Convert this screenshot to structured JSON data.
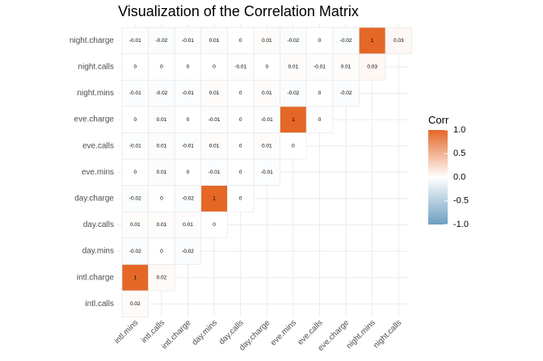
{
  "chart_data": {
    "type": "heatmap",
    "title": "Visualization of the Correlation Matrix",
    "x_categories": [
      "intl.mins",
      "intl.calls",
      "intl.charge",
      "day.mins",
      "day.calls",
      "day.charge",
      "eve.mins",
      "eve.calls",
      "eve.charge",
      "night.mins",
      "night.calls"
    ],
    "y_categories": [
      "intl.calls",
      "intl.charge",
      "day.mins",
      "day.calls",
      "day.charge",
      "eve.mins",
      "eve.calls",
      "eve.charge",
      "night.mins",
      "night.calls",
      "night.charge"
    ],
    "cells": [
      {
        "x": "intl.mins",
        "y": "intl.calls",
        "value": 0.02,
        "label": "0.02"
      },
      {
        "x": "intl.mins",
        "y": "intl.charge",
        "value": 1,
        "label": "1"
      },
      {
        "x": "intl.calls",
        "y": "intl.charge",
        "value": 0.02,
        "label": "0.02"
      },
      {
        "x": "intl.mins",
        "y": "day.mins",
        "value": -0.02,
        "label": "-0.02"
      },
      {
        "x": "intl.calls",
        "y": "day.mins",
        "value": 0,
        "label": "0"
      },
      {
        "x": "intl.charge",
        "y": "day.mins",
        "value": -0.02,
        "label": "-0.02"
      },
      {
        "x": "intl.mins",
        "y": "day.calls",
        "value": 0.01,
        "label": "0.01"
      },
      {
        "x": "intl.calls",
        "y": "day.calls",
        "value": 0.01,
        "label": "0.01"
      },
      {
        "x": "intl.charge",
        "y": "day.calls",
        "value": 0.01,
        "label": "0.01"
      },
      {
        "x": "day.mins",
        "y": "day.calls",
        "value": 0,
        "label": "0"
      },
      {
        "x": "intl.mins",
        "y": "day.charge",
        "value": -0.02,
        "label": "-0.02"
      },
      {
        "x": "intl.calls",
        "y": "day.charge",
        "value": 0,
        "label": "0"
      },
      {
        "x": "intl.charge",
        "y": "day.charge",
        "value": -0.02,
        "label": "-0.02"
      },
      {
        "x": "day.mins",
        "y": "day.charge",
        "value": 1,
        "label": "1"
      },
      {
        "x": "day.calls",
        "y": "day.charge",
        "value": 0,
        "label": "0"
      },
      {
        "x": "intl.mins",
        "y": "eve.mins",
        "value": 0,
        "label": "0"
      },
      {
        "x": "intl.calls",
        "y": "eve.mins",
        "value": 0.01,
        "label": "0.01"
      },
      {
        "x": "intl.charge",
        "y": "eve.mins",
        "value": 0,
        "label": "0"
      },
      {
        "x": "day.mins",
        "y": "eve.mins",
        "value": -0.01,
        "label": "-0.01"
      },
      {
        "x": "day.calls",
        "y": "eve.mins",
        "value": 0,
        "label": "0"
      },
      {
        "x": "day.charge",
        "y": "eve.mins",
        "value": -0.01,
        "label": "-0.01"
      },
      {
        "x": "intl.mins",
        "y": "eve.calls",
        "value": -0.01,
        "label": "-0.01"
      },
      {
        "x": "intl.calls",
        "y": "eve.calls",
        "value": 0.01,
        "label": "0.01"
      },
      {
        "x": "intl.charge",
        "y": "eve.calls",
        "value": -0.01,
        "label": "-0.01"
      },
      {
        "x": "day.mins",
        "y": "eve.calls",
        "value": 0.01,
        "label": "0.01"
      },
      {
        "x": "day.calls",
        "y": "eve.calls",
        "value": 0,
        "label": "0"
      },
      {
        "x": "day.charge",
        "y": "eve.calls",
        "value": 0.01,
        "label": "0.01"
      },
      {
        "x": "eve.mins",
        "y": "eve.calls",
        "value": 0,
        "label": "0"
      },
      {
        "x": "intl.mins",
        "y": "eve.charge",
        "value": 0,
        "label": "0"
      },
      {
        "x": "intl.calls",
        "y": "eve.charge",
        "value": 0.01,
        "label": "0.01"
      },
      {
        "x": "intl.charge",
        "y": "eve.charge",
        "value": 0,
        "label": "0"
      },
      {
        "x": "day.mins",
        "y": "eve.charge",
        "value": -0.01,
        "label": "-0.01"
      },
      {
        "x": "day.calls",
        "y": "eve.charge",
        "value": 0,
        "label": "0"
      },
      {
        "x": "day.charge",
        "y": "eve.charge",
        "value": -0.01,
        "label": "-0.01"
      },
      {
        "x": "eve.mins",
        "y": "eve.charge",
        "value": 1,
        "label": "1"
      },
      {
        "x": "eve.calls",
        "y": "eve.charge",
        "value": 0,
        "label": "0"
      },
      {
        "x": "intl.mins",
        "y": "night.mins",
        "value": -0.01,
        "label": "-0.01"
      },
      {
        "x": "intl.calls",
        "y": "night.mins",
        "value": -0.02,
        "label": "-0.02"
      },
      {
        "x": "intl.charge",
        "y": "night.mins",
        "value": -0.01,
        "label": "-0.01"
      },
      {
        "x": "day.mins",
        "y": "night.mins",
        "value": 0.01,
        "label": "0.01"
      },
      {
        "x": "day.calls",
        "y": "night.mins",
        "value": 0,
        "label": "0"
      },
      {
        "x": "day.charge",
        "y": "night.mins",
        "value": 0.01,
        "label": "0.01"
      },
      {
        "x": "eve.mins",
        "y": "night.mins",
        "value": -0.02,
        "label": "-0.02"
      },
      {
        "x": "eve.calls",
        "y": "night.mins",
        "value": 0,
        "label": "0"
      },
      {
        "x": "eve.charge",
        "y": "night.mins",
        "value": -0.02,
        "label": "-0.02"
      },
      {
        "x": "intl.mins",
        "y": "night.calls",
        "value": 0,
        "label": "0"
      },
      {
        "x": "intl.calls",
        "y": "night.calls",
        "value": 0,
        "label": "0"
      },
      {
        "x": "intl.charge",
        "y": "night.calls",
        "value": 0,
        "label": "0"
      },
      {
        "x": "day.mins",
        "y": "night.calls",
        "value": 0,
        "label": "0"
      },
      {
        "x": "day.calls",
        "y": "night.calls",
        "value": -0.01,
        "label": "-0.01"
      },
      {
        "x": "day.charge",
        "y": "night.calls",
        "value": 0,
        "label": "0"
      },
      {
        "x": "eve.mins",
        "y": "night.calls",
        "value": 0.01,
        "label": "0.01"
      },
      {
        "x": "eve.calls",
        "y": "night.calls",
        "value": -0.01,
        "label": "-0.01"
      },
      {
        "x": "eve.charge",
        "y": "night.calls",
        "value": 0.01,
        "label": "0.01"
      },
      {
        "x": "night.mins",
        "y": "night.calls",
        "value": 0.03,
        "label": "0.03"
      },
      {
        "x": "intl.mins",
        "y": "night.charge",
        "value": -0.01,
        "label": "-0.01"
      },
      {
        "x": "intl.calls",
        "y": "night.charge",
        "value": -0.02,
        "label": "-0.02"
      },
      {
        "x": "intl.charge",
        "y": "night.charge",
        "value": -0.01,
        "label": "-0.01"
      },
      {
        "x": "day.mins",
        "y": "night.charge",
        "value": 0.01,
        "label": "0.01"
      },
      {
        "x": "day.calls",
        "y": "night.charge",
        "value": 0,
        "label": "0"
      },
      {
        "x": "day.charge",
        "y": "night.charge",
        "value": 0.01,
        "label": "0.01"
      },
      {
        "x": "eve.mins",
        "y": "night.charge",
        "value": -0.02,
        "label": "-0.02"
      },
      {
        "x": "eve.calls",
        "y": "night.charge",
        "value": 0,
        "label": "0"
      },
      {
        "x": "eve.charge",
        "y": "night.charge",
        "value": -0.02,
        "label": "-0.02"
      },
      {
        "x": "night.mins",
        "y": "night.charge",
        "value": 1,
        "label": "1"
      },
      {
        "x": "night.calls",
        "y": "night.charge",
        "value": 0.03,
        "label": "0.03"
      }
    ],
    "color_scale": {
      "low": "#6D9EC1",
      "mid": "#FFFFFF",
      "high": "#E46726",
      "range": [
        -1,
        1
      ]
    },
    "legend": {
      "title": "Corr",
      "ticks": [
        "1.0",
        "0.5",
        "0.0",
        "-0.5",
        "-1.0"
      ],
      "tick_values": [
        1,
        0.5,
        0,
        -0.5,
        -1
      ],
      "placement": "right"
    },
    "grid": true
  }
}
